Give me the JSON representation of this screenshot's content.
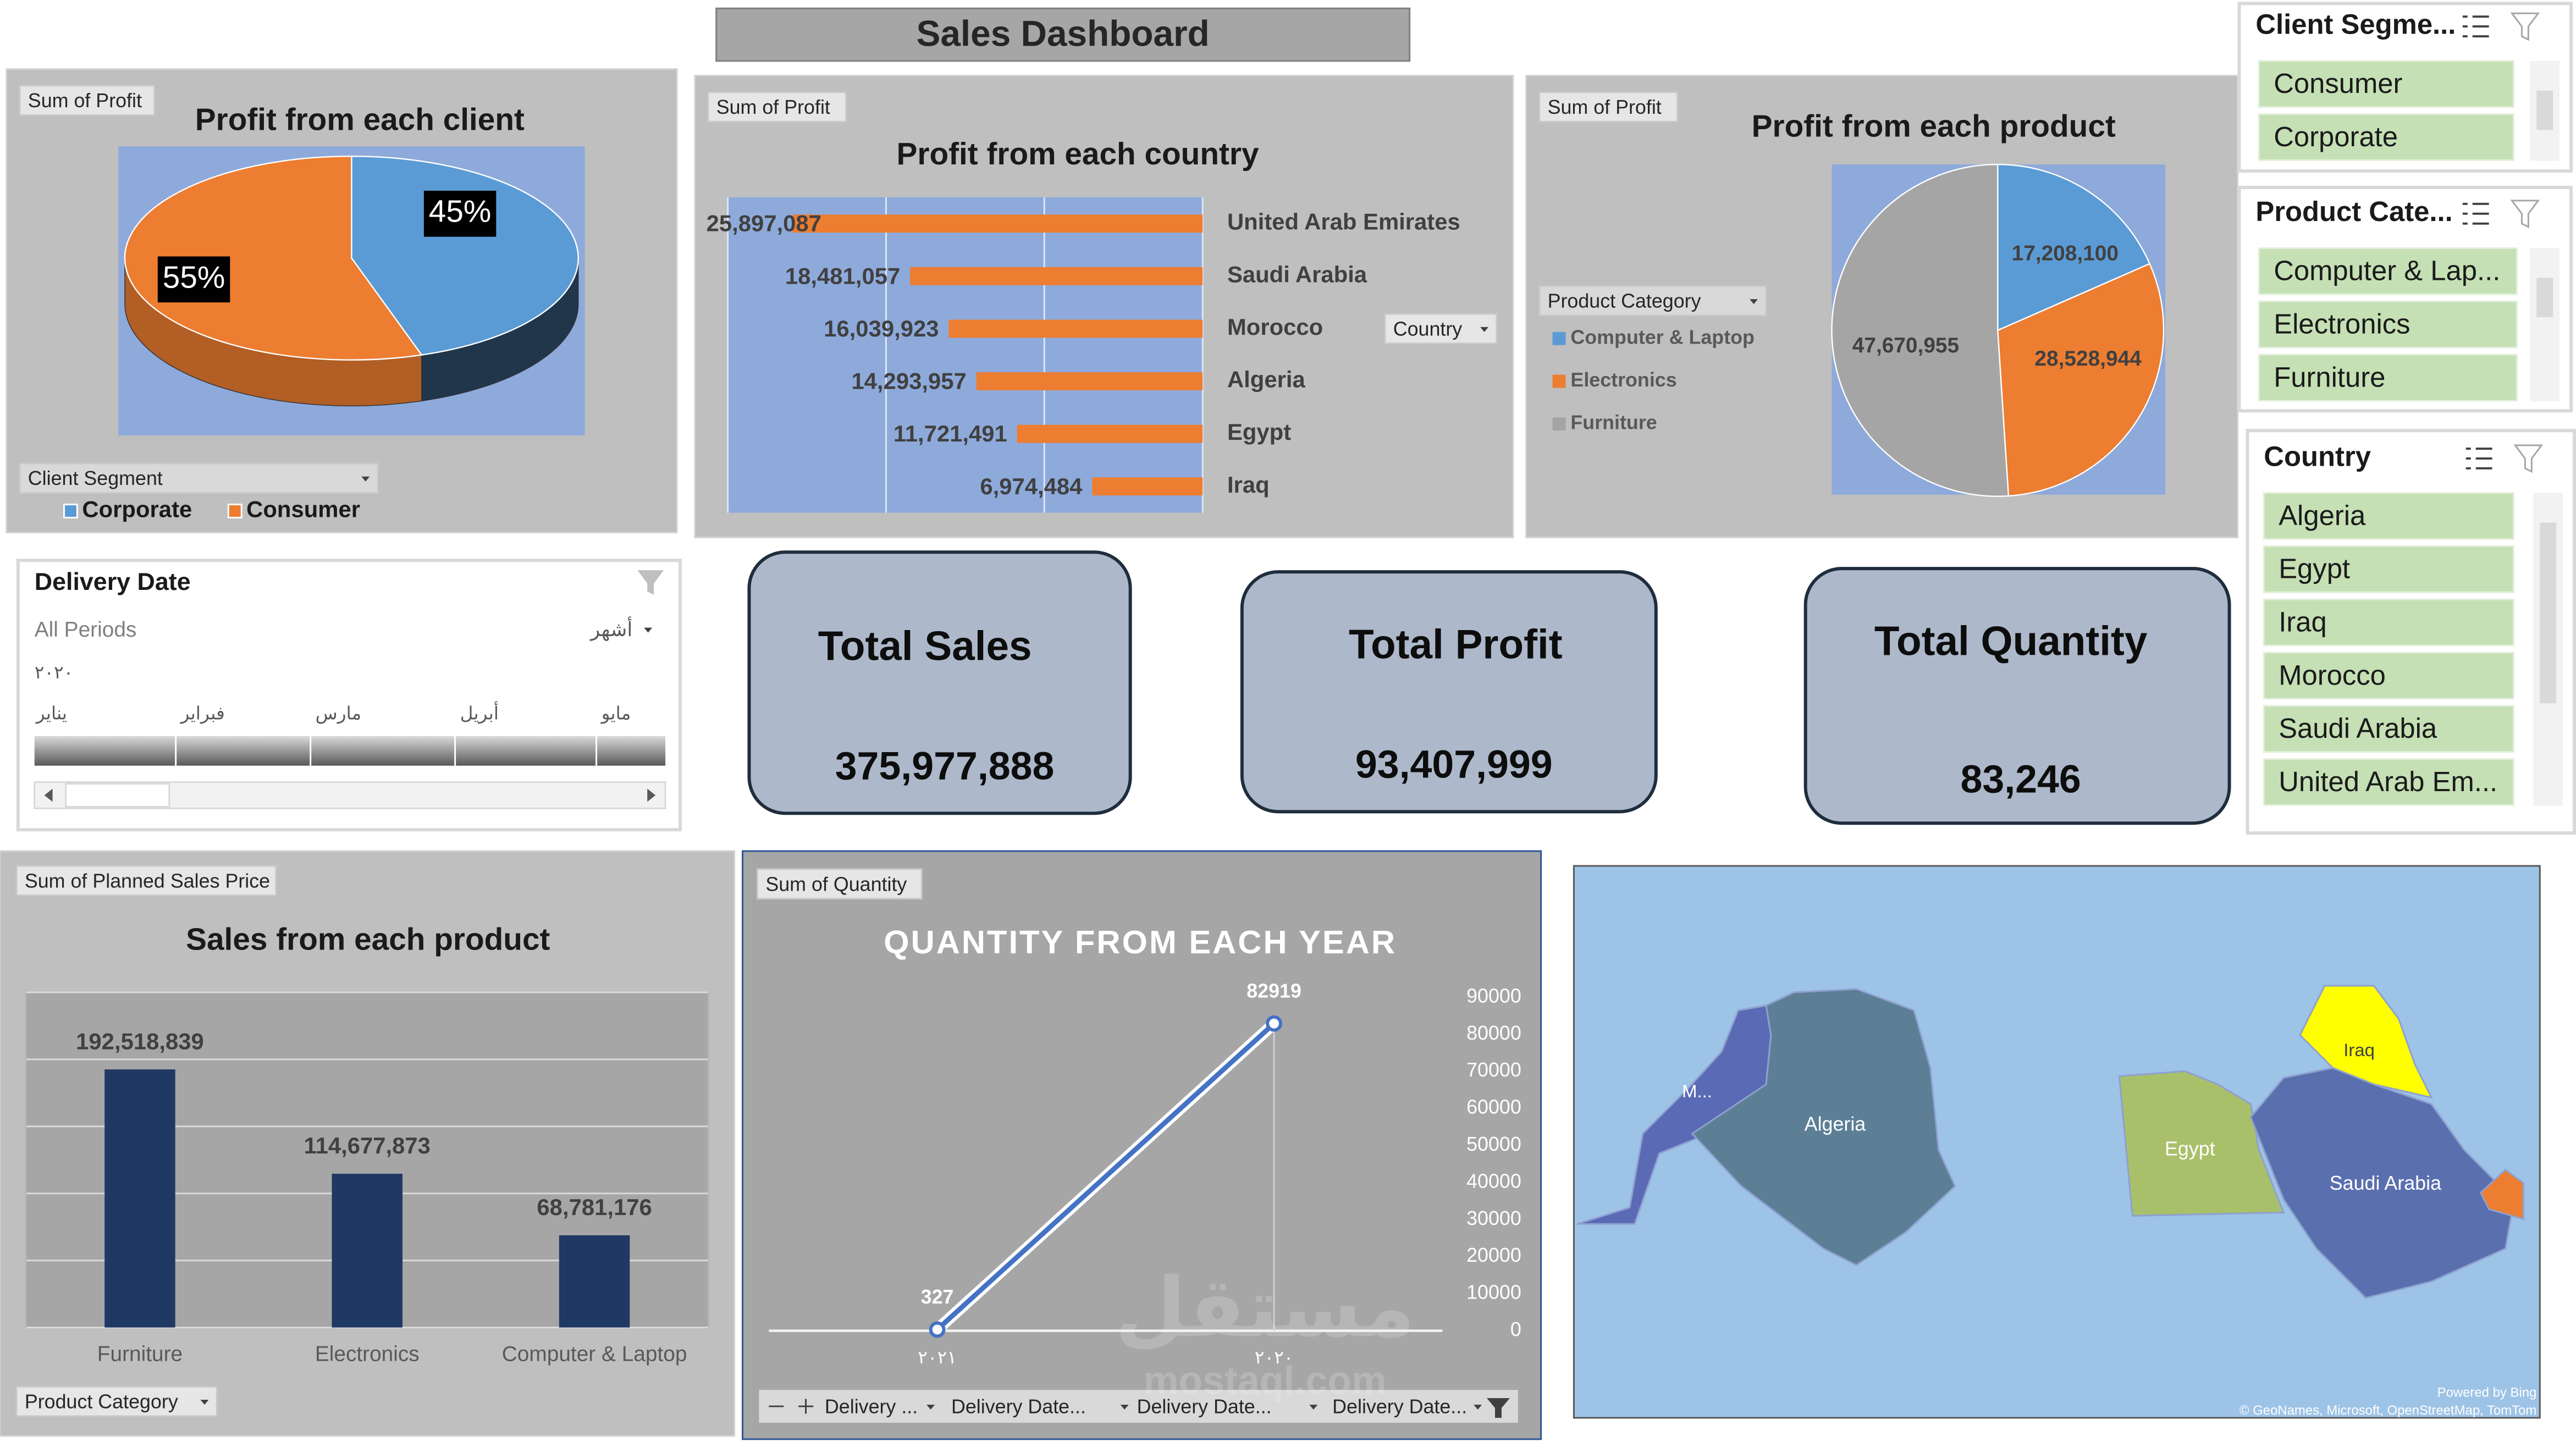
{
  "title": "Sales Dashboard",
  "chart_data": [
    {
      "type": "pie",
      "title": "Profit from each client",
      "field_buttons": [
        "Sum of Profit"
      ],
      "legend_title": "Client Segment",
      "categories": [
        "Corporate",
        "Consumer"
      ],
      "values": [
        45,
        55
      ],
      "value_labels": [
        "45%",
        "55%"
      ],
      "colors": [
        "#5b9bd5",
        "#ed7d31"
      ],
      "style": "3d",
      "legend": "bottom"
    },
    {
      "type": "bar",
      "orientation": "horizontal",
      "title": "Profit from each country",
      "field_buttons": [
        "Sum of Profit"
      ],
      "axis_buttons": [
        "Country"
      ],
      "categories": [
        "United Arab Emirates",
        "Saudi Arabia",
        "Morocco",
        "Algeria",
        "Egypt",
        "Iraq"
      ],
      "values": [
        25897087,
        18481057,
        16039923,
        14293957,
        11721491,
        6974484
      ],
      "value_labels": [
        "25,897,087",
        "18,481,057",
        "16,039,923",
        "14,293,957",
        "11,721,491",
        "6,974,484"
      ],
      "color": "#ed7d31",
      "xlim": [
        0,
        30000000
      ],
      "xticks": [
        0,
        10000000,
        20000000,
        30000000
      ],
      "grid": true,
      "tick_labels": false,
      "reversed": true
    },
    {
      "type": "pie",
      "title": "Profit from each product",
      "field_buttons": [
        "Sum of Profit"
      ],
      "legend_title": "Product Category",
      "categories": [
        "Computer & Laptop",
        "Electronics",
        "Furniture"
      ],
      "values": [
        17208100,
        28528944,
        47670955
      ],
      "value_labels": [
        "17,208,100",
        "28,528,944",
        "47,670,955"
      ],
      "colors": [
        "#5b9bd5",
        "#ed7d31",
        "#a5a5a5"
      ],
      "style": "flat",
      "legend": "left"
    },
    {
      "type": "bar",
      "orientation": "vertical",
      "title": "Sales from each product",
      "field_buttons": [
        "Sum of Planned Sales Price"
      ],
      "axis_buttons": [
        "Product Category"
      ],
      "categories": [
        "Furniture",
        "Electronics",
        "Computer & Laptop"
      ],
      "values": [
        192518839,
        114677873,
        68781176
      ],
      "value_labels": [
        "192,518,839",
        "114,677,873",
        "68,781,176"
      ],
      "color": "#203864",
      "ylim": [
        0,
        250000000
      ],
      "yticks": [
        0,
        50000000,
        100000000,
        150000000,
        200000000,
        250000000
      ],
      "grid": true,
      "tick_labels": false
    },
    {
      "type": "line",
      "title": "QUANTITY FROM EACH YEAR",
      "field_buttons": [
        "Sum of Quantity"
      ],
      "axis_buttons": [
        "Delivery ...",
        "Delivery Date...",
        "Delivery Date...",
        "Delivery Date..."
      ],
      "categories": [
        "٢٠٢١",
        "٢٠٢٠"
      ],
      "values": [
        327,
        82919
      ],
      "color": "#4472c4",
      "ylim": [
        0,
        90000
      ],
      "yticks": [
        0,
        10000,
        20000,
        30000,
        40000,
        50000,
        60000,
        70000,
        80000,
        90000
      ],
      "y_axis": "right"
    }
  ],
  "kpis": [
    {
      "label": "Total Sales",
      "value": "375,977,888"
    },
    {
      "label": "Total Profit",
      "value": "93,407,999"
    },
    {
      "label": "Total Quantity",
      "value": "83,246"
    }
  ],
  "slicers": [
    {
      "title": "Client Segme...",
      "items": [
        "Consumer",
        "Corporate"
      ]
    },
    {
      "title": "Product Cate...",
      "items": [
        "Computer & Lap...",
        "Electronics",
        "Furniture"
      ]
    },
    {
      "title": "Country",
      "items": [
        "Algeria",
        "Egypt",
        "Iraq",
        "Morocco",
        "Saudi Arabia",
        "United Arab Em..."
      ]
    }
  ],
  "timeline": {
    "title": "Delivery Date",
    "period": "All Periods",
    "level": "أشهر",
    "year": "٢٠٢٠",
    "months": [
      "يناير",
      "فبراير",
      "مارس",
      "أبريل",
      "مايو"
    ]
  },
  "map": {
    "labels": [
      "M...",
      "Algeria",
      "Egypt",
      "Iraq",
      "Saudi Arabia"
    ],
    "credits": [
      "Powered by Bing",
      "© GeoNames, Microsoft, OpenStreetMap, TomTom"
    ]
  },
  "watermark": [
    "مستقل",
    "mostaql.com"
  ]
}
